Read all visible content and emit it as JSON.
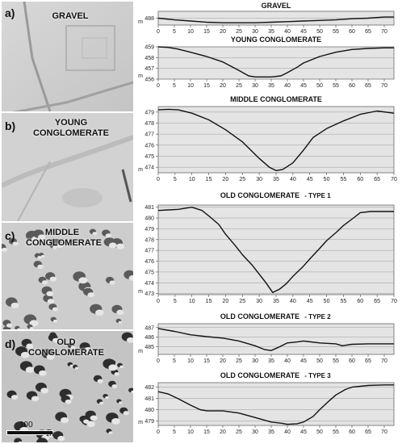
{
  "hillshade_panels": [
    {
      "letter": "a)",
      "title": "GRAVEL"
    },
    {
      "letter": "b)",
      "title": "YOUNG CONGLOMERATE"
    },
    {
      "letter": "c)",
      "title": "MIDDLE CONGLOMERATE"
    },
    {
      "letter": "d)",
      "title": "OLD CONGLOMERATE"
    }
  ],
  "scale_bar": {
    "value": "100",
    "unit": "m"
  },
  "chart_data": [
    {
      "type": "line",
      "title": "GRAVEL",
      "subtitle": "",
      "xlabel": "",
      "ylabel": "m",
      "xlim": [
        0,
        73
      ],
      "ylim": [
        487.4,
        488.6
      ],
      "xticks": [
        0,
        5,
        10,
        15,
        20,
        25,
        30,
        35,
        40,
        45,
        50,
        55,
        60,
        65,
        70
      ],
      "yticks": [
        488
      ],
      "x": [
        0,
        5,
        10,
        15,
        20,
        25,
        30,
        35,
        40,
        45,
        50,
        55,
        60,
        65,
        70,
        73
      ],
      "y": [
        488.0,
        487.85,
        487.75,
        487.65,
        487.6,
        487.6,
        487.6,
        487.65,
        487.7,
        487.75,
        487.8,
        487.85,
        487.95,
        488.0,
        488.1,
        488.1
      ]
    },
    {
      "type": "line",
      "title": "YOUNG CONGLOMERATE",
      "subtitle": "",
      "xlabel": "",
      "ylabel": "m",
      "xlim": [
        0,
        73
      ],
      "ylim": [
        456,
        459
      ],
      "xticks": [
        0,
        5,
        10,
        15,
        20,
        25,
        30,
        35,
        40,
        45,
        50,
        55,
        60,
        65,
        70
      ],
      "yticks": [
        456,
        457,
        458,
        459
      ],
      "x": [
        0,
        3,
        6,
        10,
        15,
        20,
        25,
        28,
        30,
        33,
        35,
        38,
        40,
        43,
        45,
        50,
        55,
        60,
        65,
        70,
        73
      ],
      "y": [
        459.0,
        458.95,
        458.8,
        458.5,
        458.1,
        457.6,
        456.8,
        456.3,
        456.2,
        456.2,
        456.2,
        456.3,
        456.6,
        457.1,
        457.5,
        458.1,
        458.5,
        458.75,
        458.85,
        458.9,
        458.9
      ]
    },
    {
      "type": "line",
      "title": "MIDDLE CONGLOMERATE",
      "subtitle": "",
      "xlabel": "",
      "ylabel": "m",
      "xlim": [
        0,
        70
      ],
      "ylim": [
        473.5,
        479.5
      ],
      "xticks": [
        0,
        5,
        10,
        15,
        20,
        25,
        30,
        35,
        40,
        45,
        50,
        55,
        60,
        65,
        70
      ],
      "yticks": [
        474,
        475,
        476,
        477,
        478,
        479
      ],
      "x": [
        0,
        3,
        6,
        10,
        15,
        20,
        25,
        30,
        33,
        35,
        37,
        40,
        43,
        46,
        50,
        55,
        60,
        65,
        70
      ],
      "y": [
        479.2,
        479.25,
        479.2,
        478.9,
        478.3,
        477.4,
        476.3,
        474.8,
        474.0,
        473.7,
        473.8,
        474.4,
        475.5,
        476.7,
        477.5,
        478.2,
        478.8,
        479.1,
        478.9
      ]
    },
    {
      "type": "line",
      "title": "OLD CONGLOMERATE",
      "subtitle": "- TYPE 1",
      "xlabel": "",
      "ylabel": "m",
      "xlim": [
        0,
        70
      ],
      "ylim": [
        472.9,
        481.2
      ],
      "xticks": [
        0,
        5,
        10,
        15,
        20,
        25,
        30,
        35,
        40,
        45,
        50,
        55,
        60,
        65,
        70
      ],
      "yticks": [
        473,
        474,
        475,
        476,
        477,
        478,
        479,
        480,
        481
      ],
      "x": [
        0,
        3,
        6,
        10,
        13,
        15,
        18,
        20,
        23,
        25,
        28,
        30,
        32,
        34,
        36,
        38,
        40,
        43,
        45,
        48,
        50,
        53,
        55,
        58,
        60,
        63,
        65,
        68,
        70
      ],
      "y": [
        480.7,
        480.75,
        480.8,
        481.0,
        480.7,
        480.2,
        479.4,
        478.5,
        477.4,
        476.6,
        475.6,
        474.8,
        474.0,
        473.1,
        473.4,
        473.9,
        474.6,
        475.5,
        476.2,
        477.2,
        477.9,
        478.7,
        479.3,
        480.0,
        480.5,
        480.6,
        480.6,
        480.6,
        480.6
      ]
    },
    {
      "type": "line",
      "title": "OLD CONGLOMERATE",
      "subtitle": "- TYPE 2",
      "xlabel": "",
      "ylabel": "m",
      "xlim": [
        0,
        73
      ],
      "ylim": [
        484.2,
        487.4
      ],
      "xticks": [
        0,
        5,
        10,
        15,
        20,
        25,
        30,
        35,
        40,
        45,
        50,
        55,
        60,
        65,
        70
      ],
      "yticks": [
        485,
        486,
        487
      ],
      "x": [
        0,
        5,
        10,
        15,
        20,
        25,
        30,
        33,
        35,
        37,
        40,
        43,
        45,
        50,
        55,
        57,
        60,
        65,
        70,
        73
      ],
      "y": [
        486.9,
        486.6,
        486.25,
        486.05,
        485.9,
        485.6,
        485.1,
        484.7,
        484.6,
        484.9,
        485.4,
        485.5,
        485.6,
        485.4,
        485.3,
        485.1,
        485.25,
        485.3,
        485.3,
        485.3
      ]
    },
    {
      "type": "line",
      "title": "OLD CONGLOMERATE",
      "subtitle": "- TYPE 3",
      "xlabel": "",
      "ylabel": "m",
      "xlim": [
        0,
        73
      ],
      "ylim": [
        478.6,
        482.4
      ],
      "xticks": [
        0,
        5,
        10,
        15,
        20,
        25,
        30,
        35,
        40,
        45,
        50,
        55,
        60,
        65,
        70
      ],
      "yticks": [
        479,
        480,
        481,
        482
      ],
      "x": [
        0,
        3,
        6,
        10,
        13,
        15,
        20,
        25,
        30,
        35,
        38,
        40,
        43,
        45,
        48,
        50,
        53,
        55,
        58,
        60,
        65,
        70,
        73
      ],
      "y": [
        481.6,
        481.4,
        481.0,
        480.4,
        480.0,
        479.9,
        479.9,
        479.7,
        479.3,
        478.9,
        478.8,
        478.7,
        478.75,
        478.9,
        479.4,
        480.0,
        480.8,
        481.3,
        481.8,
        482.0,
        482.15,
        482.2,
        482.2
      ]
    }
  ]
}
